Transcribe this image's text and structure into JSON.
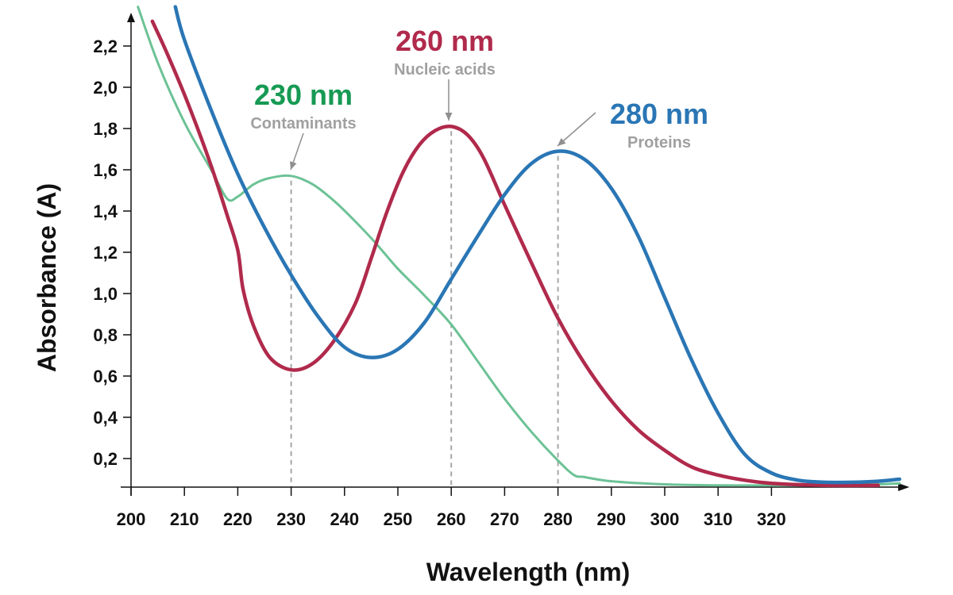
{
  "chart_data": {
    "type": "line",
    "xlabel": "Wavelength (nm)",
    "ylabel": "Absorbance (A)",
    "xlim": [
      200,
      345
    ],
    "ylim": [
      0.05,
      2.3
    ],
    "x_ticks": [
      200,
      210,
      220,
      230,
      240,
      250,
      260,
      270,
      280,
      290,
      300,
      310,
      320
    ],
    "x_tick_labels": [
      "200",
      "210",
      "220",
      "230",
      "240",
      "250",
      "260",
      "270",
      "280",
      "290",
      "300",
      "310",
      "320"
    ],
    "y_ticks": [
      0.2,
      0.4,
      0.6,
      0.8,
      1.0,
      1.2,
      1.4,
      1.6,
      1.8,
      2.0,
      2.2
    ],
    "y_tick_labels": [
      "0,2",
      "0,4",
      "0,6",
      "0,8",
      "1,0",
      "1,2",
      "1,4",
      "1,6",
      "1,8",
      "2,0",
      "2,2"
    ],
    "grid": false,
    "series": [
      {
        "key": "contaminants",
        "color": "#6cc295",
        "peak": 230,
        "x": [
          201.3,
          205,
          210,
          215,
          218,
          220,
          223,
          226,
          230,
          234,
          238,
          242,
          246,
          250,
          255,
          260,
          265,
          270,
          275,
          280,
          283,
          285,
          290,
          300,
          310,
          320,
          330,
          340,
          344
        ],
        "y": [
          2.39,
          2.12,
          1.83,
          1.6,
          1.46,
          1.47,
          1.53,
          1.56,
          1.57,
          1.53,
          1.45,
          1.35,
          1.24,
          1.12,
          0.99,
          0.85,
          0.67,
          0.49,
          0.33,
          0.19,
          0.12,
          0.11,
          0.09,
          0.075,
          0.07,
          0.07,
          0.07,
          0.075,
          0.08
        ]
      },
      {
        "key": "nucleic-acids",
        "color": "#b02a4c",
        "peak": 260,
        "x": [
          204,
          207,
          211,
          215,
          218,
          220,
          221,
          223,
          226,
          230,
          234,
          238,
          242,
          245,
          248,
          251,
          254,
          257,
          260,
          263,
          266,
          270,
          275,
          280,
          285,
          290,
          295,
          300,
          305,
          310,
          315,
          320,
          330,
          340
        ],
        "y": [
          2.32,
          2.15,
          1.9,
          1.62,
          1.38,
          1.21,
          1.02,
          0.84,
          0.69,
          0.63,
          0.66,
          0.77,
          0.95,
          1.17,
          1.4,
          1.59,
          1.72,
          1.79,
          1.81,
          1.77,
          1.66,
          1.43,
          1.15,
          0.88,
          0.66,
          0.48,
          0.34,
          0.24,
          0.16,
          0.12,
          0.095,
          0.08,
          0.07,
          0.07
        ]
      },
      {
        "key": "proteins",
        "color": "#2a76b5",
        "peak": 280,
        "x": [
          208.3,
          210,
          215,
          220,
          225,
          230,
          235,
          240,
          245,
          250,
          255,
          260,
          265,
          270,
          275,
          280,
          285,
          290,
          295,
          300,
          305,
          310,
          315,
          320,
          325,
          330,
          335,
          340,
          344
        ],
        "y": [
          2.39,
          2.23,
          1.89,
          1.58,
          1.32,
          1.09,
          0.89,
          0.74,
          0.69,
          0.73,
          0.86,
          1.07,
          1.28,
          1.48,
          1.63,
          1.69,
          1.65,
          1.51,
          1.28,
          0.98,
          0.68,
          0.42,
          0.22,
          0.13,
          0.095,
          0.085,
          0.085,
          0.09,
          0.1
        ]
      }
    ],
    "annotations": [
      {
        "key": "contaminants",
        "title": "230 nm",
        "subtitle": "Contaminants",
        "color": "#179a54",
        "x": 230
      },
      {
        "key": "nucleic-acids",
        "title": "260 nm",
        "subtitle": "Nucleic acids",
        "color": "#b02a4c",
        "x": 260
      },
      {
        "key": "proteins",
        "title": "280 nm",
        "subtitle": "Proteins",
        "color": "#2a76b5",
        "x": 280
      }
    ]
  }
}
